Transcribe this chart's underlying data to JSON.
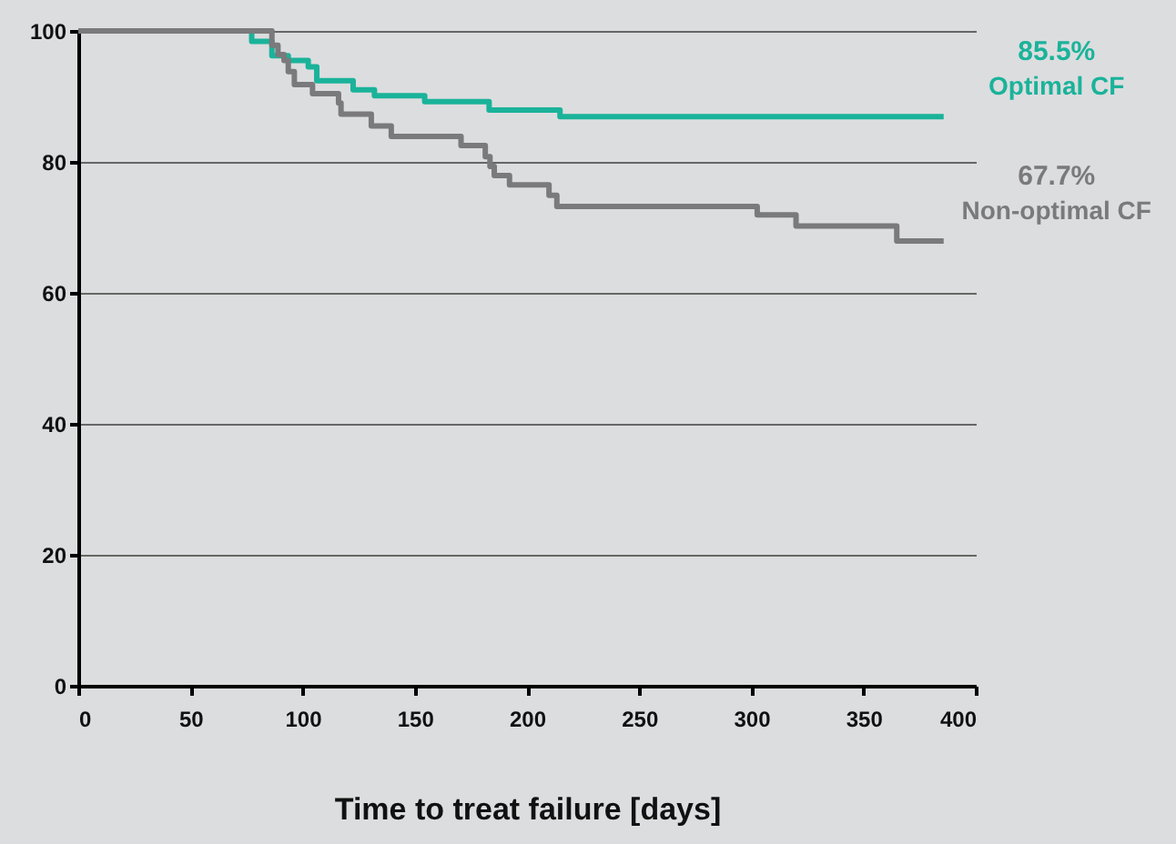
{
  "chart_data": {
    "type": "step",
    "xlabel": "Time to treat failure [days]",
    "xlim": [
      0,
      400
    ],
    "xticks": [
      0,
      50,
      100,
      150,
      200,
      250,
      300,
      350,
      400
    ],
    "ylim": [
      0,
      100
    ],
    "yticks": [
      0,
      20,
      40,
      60,
      80,
      100
    ],
    "grid": "y",
    "marker": "none",
    "line_style": "solid",
    "series": [
      {
        "name": "Optimal CF",
        "color": "#1ab39a",
        "x": [
          0,
          77.3,
          86.3,
          93.6,
          102.5,
          106.3,
          122.5,
          132,
          154.4,
          183.1,
          214.7,
          385.7
        ],
        "values": [
          100,
          98.4,
          96.2,
          95.5,
          94.5,
          92.4,
          91.0,
          90.1,
          89.2,
          87.9,
          86.9,
          86.9
        ]
      },
      {
        "name": "Non-optimal CF",
        "color": "#7a7a7c",
        "x": [
          0,
          86.3,
          89,
          91.7,
          93.6,
          96.3,
          104.4,
          116,
          117.1,
          130.6,
          139.5,
          170.6,
          181.4,
          183.5,
          185.4,
          192.2,
          209.8,
          213.3,
          302.6,
          319.9,
          364.8,
          385.7
        ],
        "values": [
          100,
          97.8,
          96.4,
          95.5,
          93.8,
          91.8,
          90.4,
          89.0,
          87.3,
          85.5,
          83.9,
          82.5,
          80.8,
          79.3,
          77.9,
          76.5,
          74.9,
          73.2,
          71.9,
          70.2,
          67.9,
          67.9
        ]
      }
    ],
    "annotations": [
      "85.5%",
      "67.7%"
    ]
  }
}
